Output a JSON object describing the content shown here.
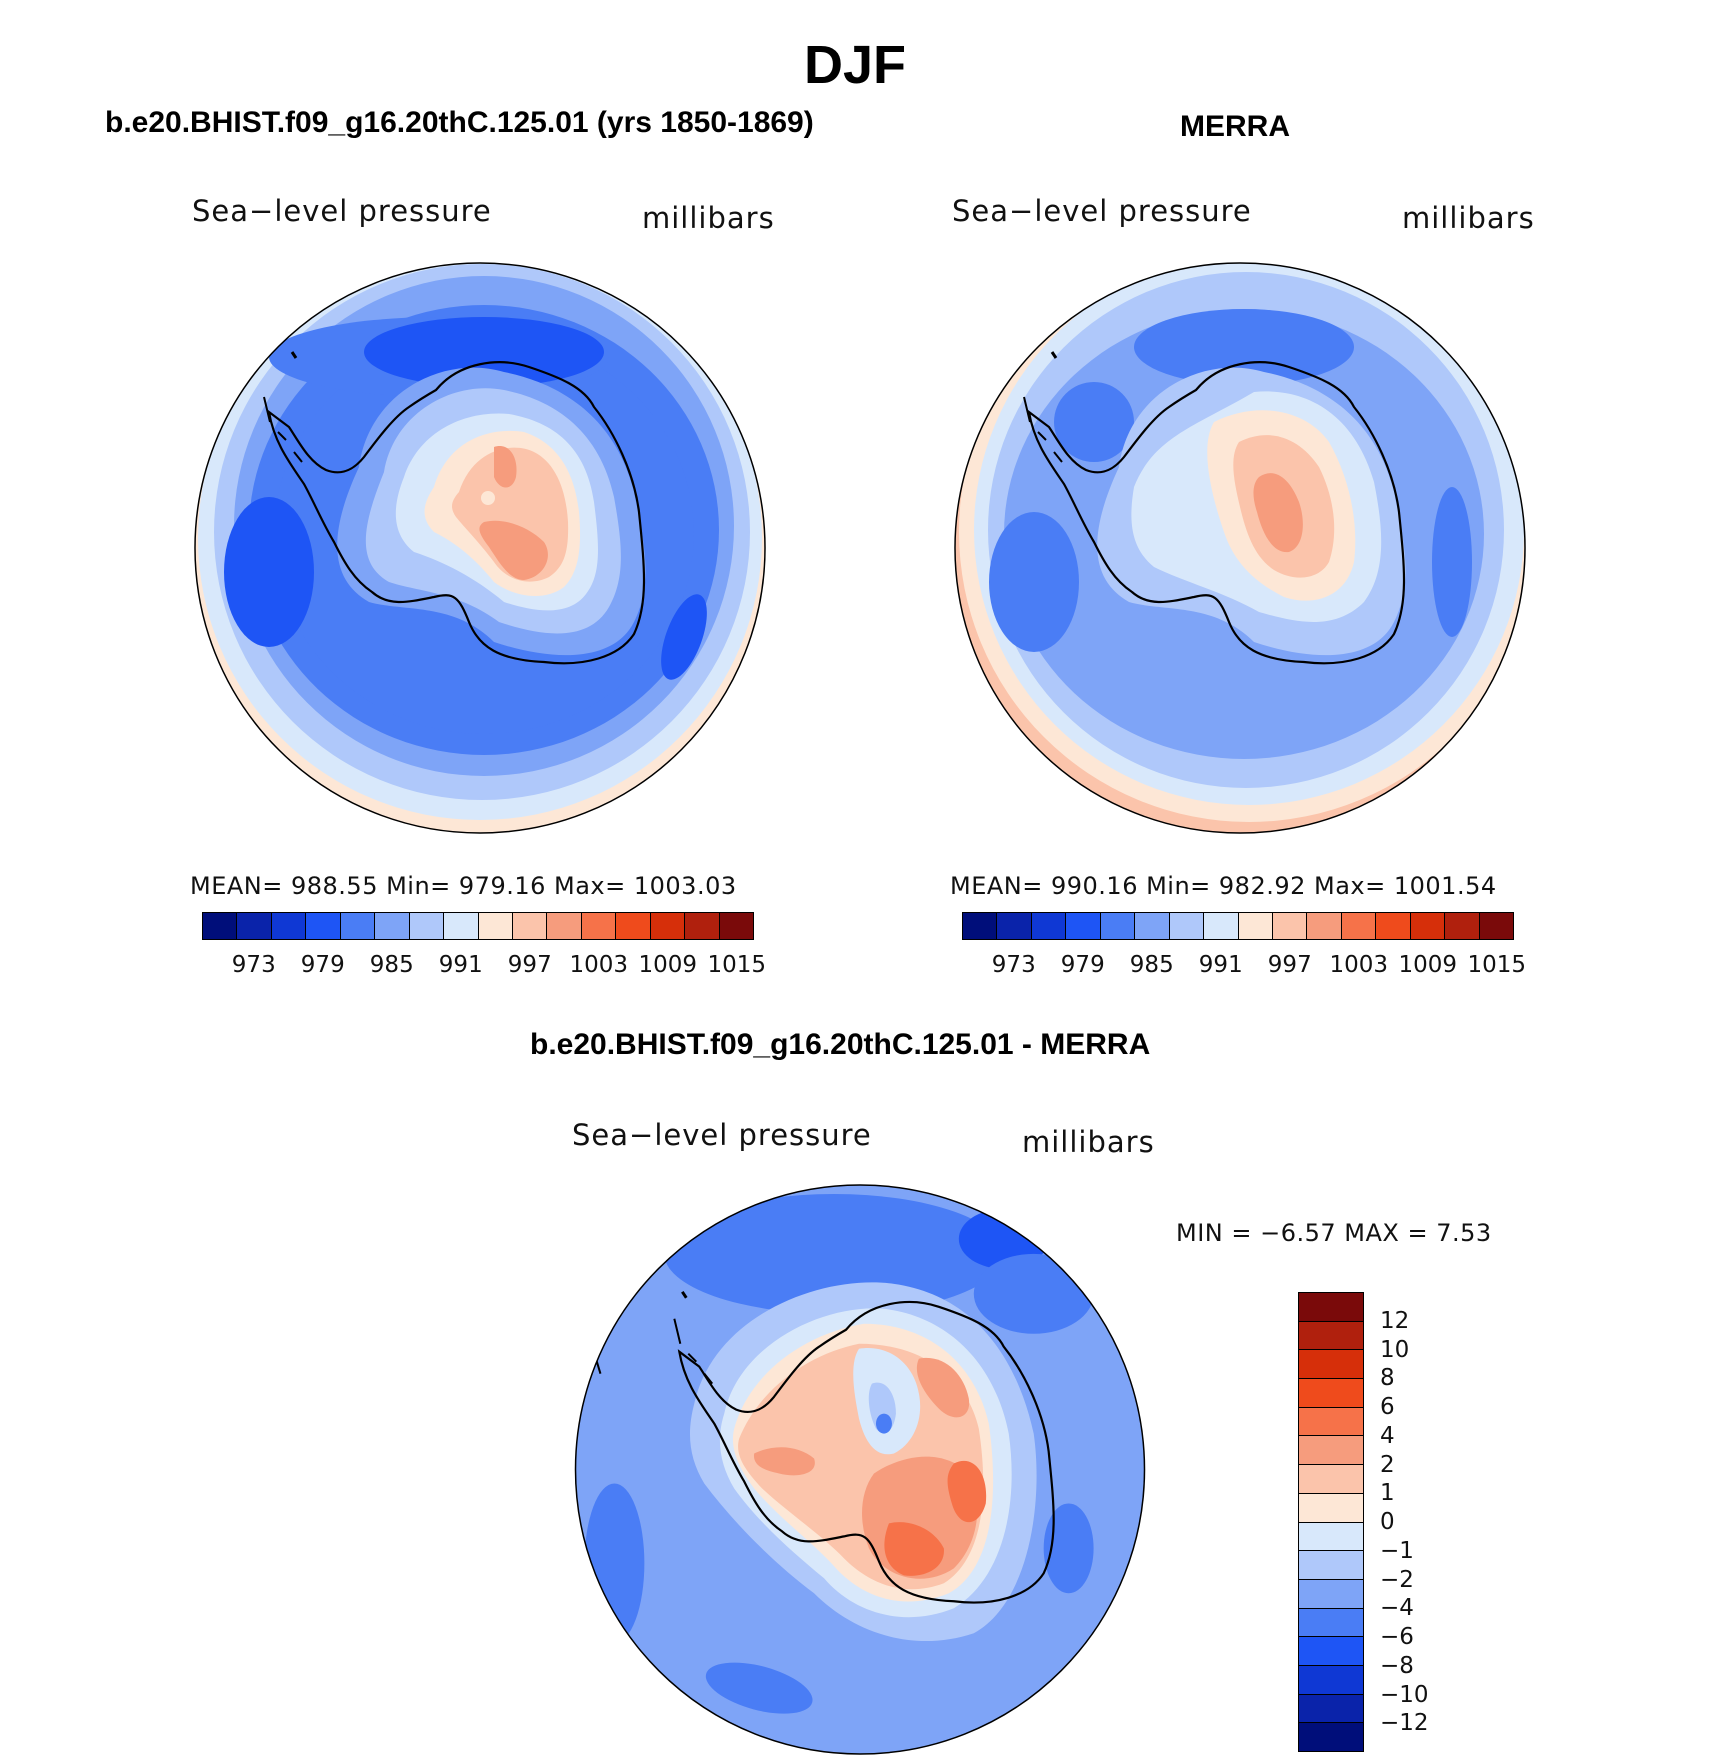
{
  "figure": {
    "title": "DJF",
    "variable_label": "Sea−level pressure",
    "units_label": "millibars"
  },
  "panels": {
    "model": {
      "title": "b.e20.BHIST.f09_g16.20thC.125.01 (yrs 1850-1869)",
      "stats": "MEAN=  988.55   Min=  979.16   Max=  1003.03"
    },
    "obs": {
      "title": "MERRA",
      "stats": "MEAN=  990.16   Min=  982.92   Max=  1001.54"
    },
    "diff": {
      "title": "b.e20.BHIST.f09_g16.20thC.125.01 - MERRA",
      "stats": "MIN =   −6.57  MAX =    7.53"
    }
  },
  "colorbars": {
    "abs_colors": [
      "#000e7a",
      "#0a23aa",
      "#0f38d4",
      "#1e55f5",
      "#4a7df5",
      "#7ea4f7",
      "#afc8fa",
      "#d8e8fb",
      "#fde7d6",
      "#fbc4ab",
      "#f69c7d",
      "#f67249",
      "#ef4b1c",
      "#d62f0a",
      "#b0200d",
      "#7a0a0a"
    ],
    "abs_ticks": [
      "973",
      "979",
      "985",
      "991",
      "997",
      "1003",
      "1009",
      "1015"
    ],
    "diff_colors": [
      "#7a0a0a",
      "#b0200d",
      "#d62f0a",
      "#ef4b1c",
      "#f67249",
      "#f69c7d",
      "#fbc4ab",
      "#fde7d6",
      "#d8e8fb",
      "#afc8fa",
      "#7ea4f7",
      "#4a7df5",
      "#1e55f5",
      "#0f38d4",
      "#0a23aa",
      "#000e7a"
    ],
    "diff_ticks": [
      "12",
      "10",
      "8",
      "6",
      "4",
      "2",
      "1",
      "0",
      "−1",
      "−2",
      "−4",
      "−6",
      "−8",
      "−10",
      "−12"
    ]
  }
}
